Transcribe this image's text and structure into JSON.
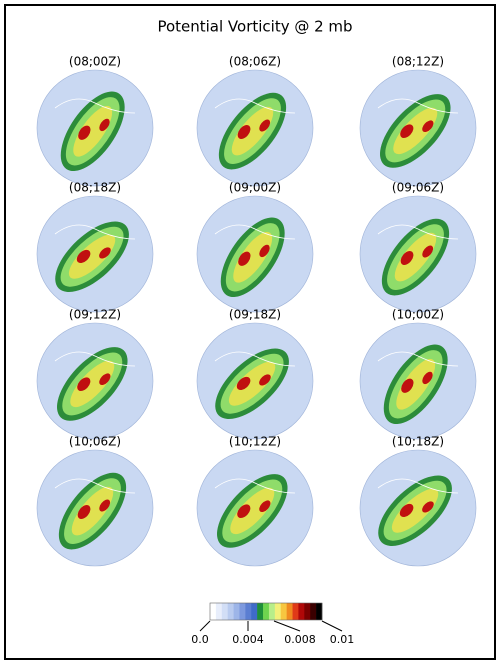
{
  "header": {
    "title": "Potential Vorticity @ 2 mb"
  },
  "panels": [
    {
      "label": "(08;00Z)"
    },
    {
      "label": "(08;06Z)"
    },
    {
      "label": "(08;12Z)"
    },
    {
      "label": "(08;18Z)"
    },
    {
      "label": "(09;00Z)"
    },
    {
      "label": "(09;06Z)"
    },
    {
      "label": "(09;12Z)"
    },
    {
      "label": "(09;18Z)"
    },
    {
      "label": "(10;00Z)"
    },
    {
      "label": "(10;06Z)"
    },
    {
      "label": "(10;12Z)"
    },
    {
      "label": "(10;18Z)"
    }
  ],
  "colorbar": {
    "tick_labels": [
      "0.0",
      "0.004",
      "0.008",
      "0.01"
    ]
  }
}
